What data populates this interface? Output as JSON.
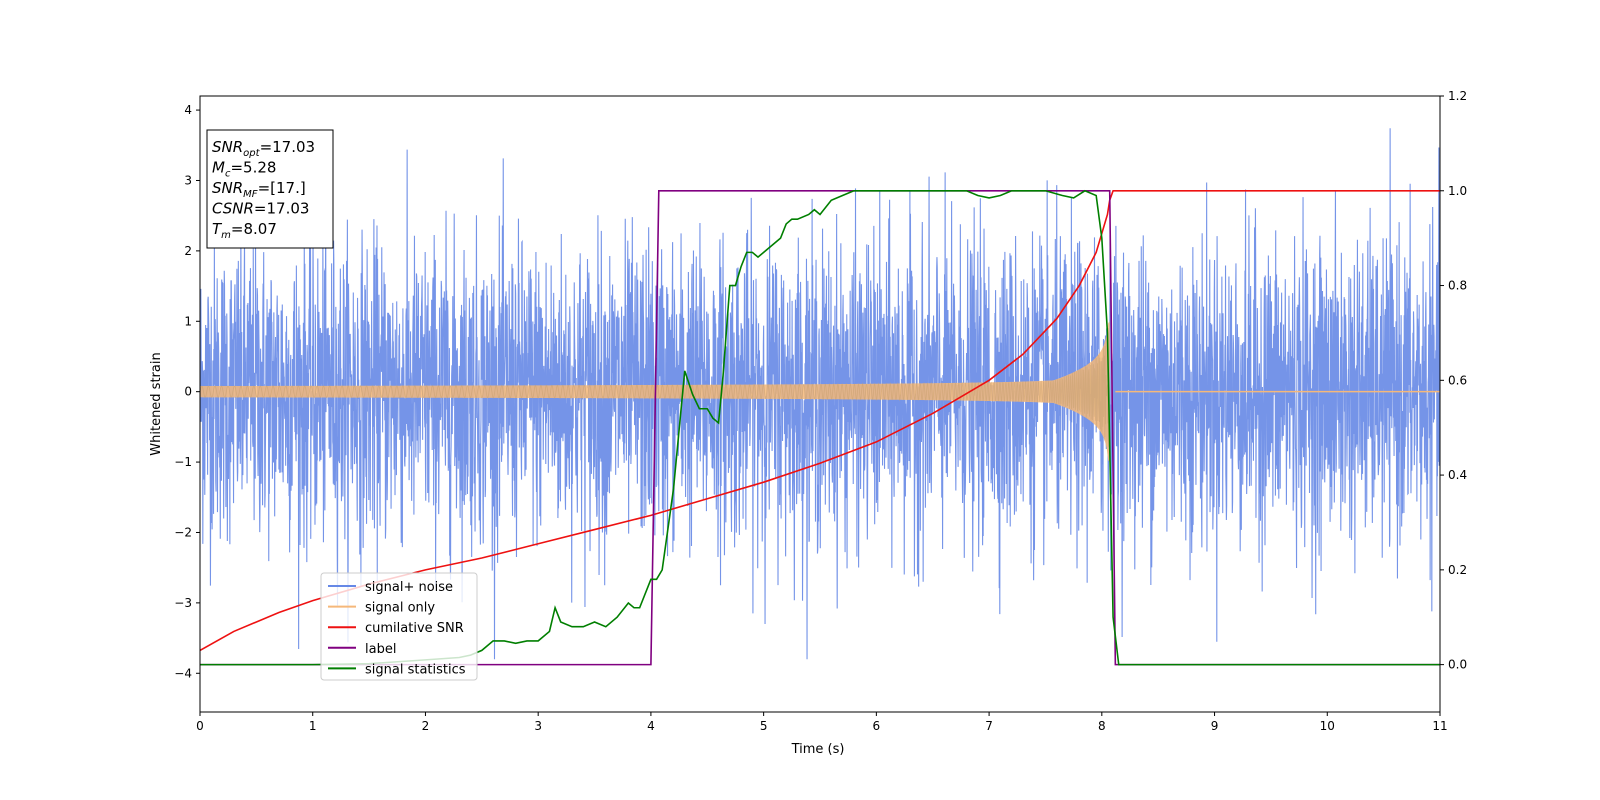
{
  "chart_data": {
    "type": "line",
    "xlabel": "Time (s)",
    "ylabel": "Whitened strain",
    "xlim": [
      0,
      11
    ],
    "ylim": [
      -4.55,
      4.2
    ],
    "y2lim": [
      -0.1,
      1.2
    ],
    "x_ticks": [
      0,
      1,
      2,
      3,
      4,
      5,
      6,
      7,
      8,
      9,
      10,
      11
    ],
    "y_ticks": [
      -4,
      -3,
      -2,
      -1,
      0,
      1,
      2,
      3,
      4
    ],
    "y2_ticks": [
      0.0,
      0.2,
      0.4,
      0.6,
      0.8,
      1.0,
      1.2
    ],
    "grid": false,
    "legend_position": "lower-left",
    "annotation": {
      "lines": [
        {
          "sym": "SNR",
          "sub": "opt",
          "value": "=17.03"
        },
        {
          "sym": "M",
          "sub": "c",
          "value": "=5.28"
        },
        {
          "sym": "SNR",
          "sub": "MF",
          "value": "=[17.]"
        },
        {
          "sym": "CSNR",
          "sub": "",
          "value": "=17.03"
        },
        {
          "sym": "T",
          "sub": "m",
          "value": "=8.07"
        }
      ]
    },
    "series": [
      {
        "name": "signal+ noise",
        "axis": "left",
        "color": "#6688e6",
        "description_values": {
          "x_range": [
            0,
            11
          ],
          "typical_amplitude": 2.2,
          "peak_max": 3.85,
          "peak_min": -3.8
        }
      },
      {
        "name": "signal only",
        "axis": "left",
        "color": "#f5b87a",
        "chirp": {
          "t_start": 0,
          "t_merge": 8.07,
          "amp_start": 0.08,
          "amp_merge": 1.0
        }
      },
      {
        "name": "cumilative SNR",
        "axis": "right",
        "color": "#ee1111",
        "x": [
          0,
          0.3,
          0.7,
          1.0,
          1.5,
          2.0,
          2.5,
          3.0,
          3.5,
          4.0,
          4.5,
          5.0,
          5.5,
          6.0,
          6.5,
          7.0,
          7.3,
          7.6,
          7.8,
          7.95,
          8.05,
          8.07,
          8.1,
          11
        ],
        "y": [
          0.03,
          0.07,
          0.11,
          0.135,
          0.17,
          0.2,
          0.225,
          0.255,
          0.285,
          0.315,
          0.35,
          0.385,
          0.425,
          0.47,
          0.53,
          0.6,
          0.655,
          0.73,
          0.8,
          0.87,
          0.95,
          0.98,
          1.0,
          1.0
        ]
      },
      {
        "name": "label",
        "axis": "right",
        "color": "#800080",
        "x": [
          0,
          4.0,
          4.07,
          8.07,
          8.12,
          11
        ],
        "y": [
          0.0,
          0.0,
          1.0,
          1.0,
          0.0,
          0.0
        ]
      },
      {
        "name": "signal statistics",
        "axis": "right",
        "color": "#007f00",
        "x": [
          0,
          1.0,
          1.5,
          2.0,
          2.3,
          2.4,
          2.5,
          2.6,
          2.7,
          2.8,
          2.9,
          3.0,
          3.1,
          3.15,
          3.2,
          3.3,
          3.4,
          3.5,
          3.6,
          3.7,
          3.8,
          3.85,
          3.9,
          4.0,
          4.05,
          4.1,
          4.2,
          4.3,
          4.37,
          4.43,
          4.5,
          4.55,
          4.6,
          4.64,
          4.7,
          4.75,
          4.8,
          4.85,
          4.9,
          4.95,
          5.0,
          5.05,
          5.1,
          5.15,
          5.2,
          5.25,
          5.3,
          5.4,
          5.45,
          5.5,
          5.6,
          5.7,
          5.8,
          6.0,
          6.2,
          6.4,
          6.6,
          6.8,
          6.9,
          7.0,
          7.1,
          7.2,
          7.35,
          7.5,
          7.65,
          7.75,
          7.85,
          7.95,
          8.0,
          8.05,
          8.1,
          8.15,
          11
        ],
        "y": [
          0.0,
          0.0,
          0.002,
          0.01,
          0.015,
          0.02,
          0.03,
          0.05,
          0.05,
          0.045,
          0.05,
          0.05,
          0.07,
          0.12,
          0.09,
          0.08,
          0.08,
          0.09,
          0.08,
          0.1,
          0.13,
          0.12,
          0.12,
          0.18,
          0.18,
          0.2,
          0.37,
          0.62,
          0.57,
          0.54,
          0.54,
          0.52,
          0.51,
          0.61,
          0.8,
          0.8,
          0.84,
          0.87,
          0.87,
          0.86,
          0.87,
          0.88,
          0.89,
          0.9,
          0.93,
          0.94,
          0.94,
          0.95,
          0.96,
          0.95,
          0.98,
          0.99,
          1.0,
          1.0,
          1.0,
          1.0,
          1.0,
          1.0,
          0.99,
          0.985,
          0.99,
          1.0,
          1.0,
          1.0,
          0.99,
          0.985,
          1.0,
          0.99,
          0.9,
          0.7,
          0.1,
          0.0,
          0.0
        ]
      }
    ]
  }
}
